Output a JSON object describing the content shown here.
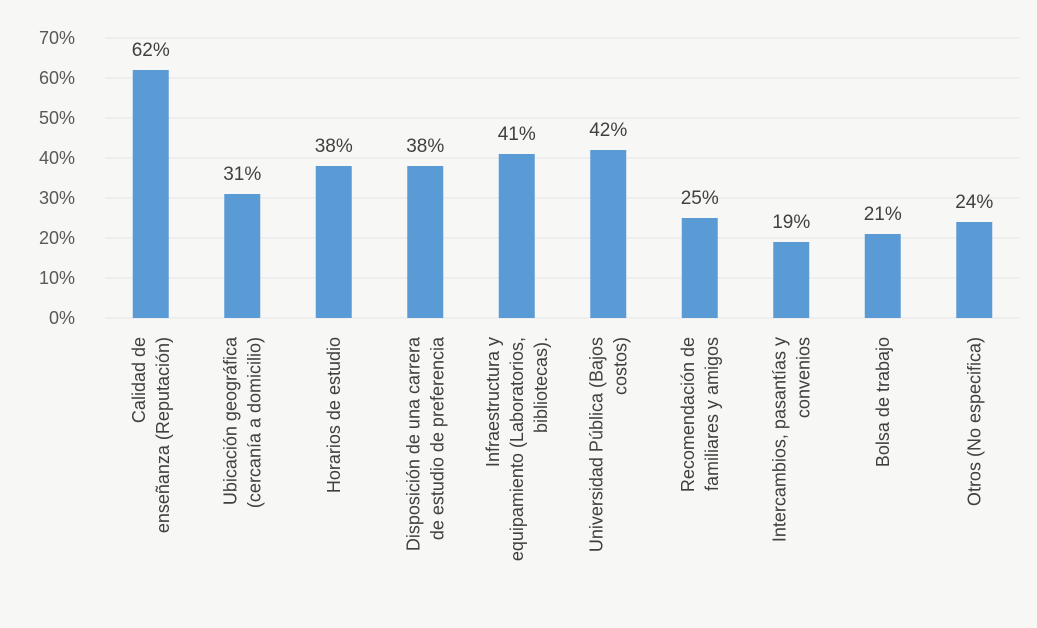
{
  "chart_data": {
    "type": "bar",
    "categories": [
      [
        "Calidad de",
        "enseñanza (Reputación)"
      ],
      [
        "Ubicación geográfica",
        "(cercanía a domicilio)"
      ],
      [
        "Horarios de estudio"
      ],
      [
        "Disposición de una carrera",
        "de estudio de preferencia"
      ],
      [
        "Infraestructura y",
        "equipamiento (Laboratorios,",
        "bibliotecas)."
      ],
      [
        "Universidad Pública (Bajos",
        "costos)"
      ],
      [
        "Recomendación de",
        "familiares y amigos"
      ],
      [
        "Intercambios, pasantías y",
        "convenios"
      ],
      [
        "Bolsa de trabajo"
      ],
      [
        "Otros (No especifica)"
      ]
    ],
    "values": [
      62,
      31,
      38,
      38,
      41,
      42,
      25,
      19,
      21,
      24
    ],
    "data_labels": [
      "62%",
      "31%",
      "38%",
      "38%",
      "41%",
      "42%",
      "25%",
      "19%",
      "21%",
      "24%"
    ],
    "ylim": [
      0,
      70
    ],
    "yticks": [
      "0%",
      "10%",
      "20%",
      "30%",
      "40%",
      "50%",
      "60%",
      "70%"
    ],
    "title": "",
    "xlabel": "",
    "ylabel": "",
    "grid": true,
    "colors": {
      "bar": "#5b9bd5",
      "grid": "#e6e6e6",
      "text": "#404040"
    }
  }
}
